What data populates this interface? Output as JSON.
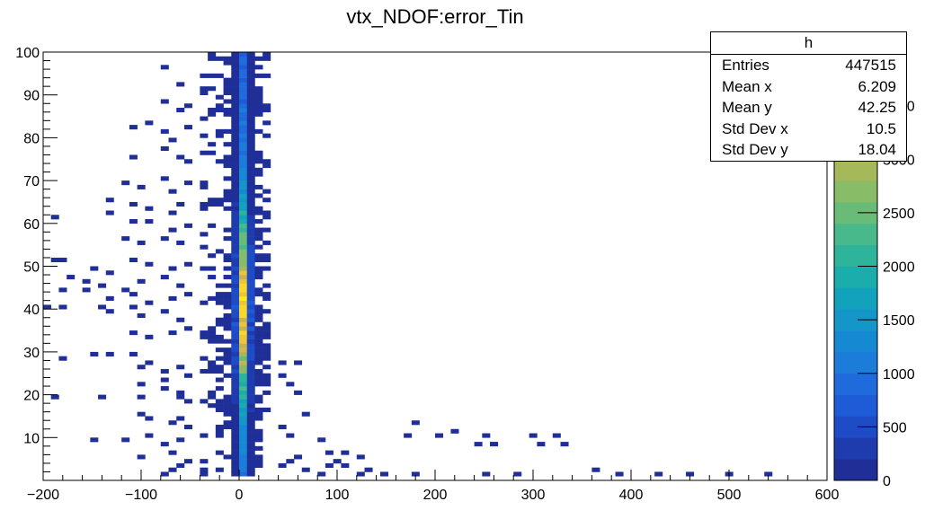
{
  "chart_data": {
    "type": "heatmap",
    "title": "vtx_NDOF:error_Tin",
    "xlabel": "",
    "ylabel": "",
    "xlim": [
      -200,
      600
    ],
    "ylim": [
      0,
      100
    ],
    "x_ticks": [
      -200,
      -100,
      0,
      100,
      200,
      300,
      400,
      500,
      600
    ],
    "y_ticks": [
      10,
      20,
      30,
      40,
      50,
      60,
      70,
      80,
      90,
      100
    ],
    "bin_width_x": 8,
    "bin_width_y": 1,
    "colorbar": {
      "ticks": [
        0,
        500,
        1000,
        1500,
        2000,
        2500,
        3000,
        3500
      ],
      "max": 4000,
      "colors": [
        "#1f2f97",
        "#1f3caf",
        "#1d4cc6",
        "#1e5bd6",
        "#1f6bdc",
        "#1b7cd9",
        "#1689d3",
        "#1596c9",
        "#13a2bb",
        "#1bacac",
        "#2db49b",
        "#48b98a",
        "#68bc77",
        "#88bc66",
        "#a6b95a",
        "#c4b552",
        "#dcb44a",
        "#eec43a",
        "#f7d82b",
        "#f9ee15"
      ]
    },
    "grid": false,
    "legend": "none",
    "stats": {
      "title": "h",
      "rows": [
        {
          "label": "Entries",
          "value": "447515"
        },
        {
          "label": "Mean x",
          "value": "6.209"
        },
        {
          "label": "Mean y",
          "value": "42.25"
        },
        {
          "label": "Std Dev x",
          "value": "10.5"
        },
        {
          "label": "Std Dev y",
          "value": "18.04"
        }
      ]
    },
    "core_column_x": 3,
    "peak_y": 40,
    "peak_counts": 4000,
    "main_cluster": {
      "x_range": [
        -40,
        30
      ],
      "y_range": [
        1,
        100
      ]
    },
    "scattered_bins": [
      [
        -80,
        96
      ],
      [
        -60,
        92
      ],
      [
        -40,
        94
      ],
      [
        -30,
        94
      ],
      [
        -10,
        93
      ],
      [
        -80,
        88
      ],
      [
        -60,
        86
      ],
      [
        -50,
        87
      ],
      [
        -30,
        86
      ],
      [
        -20,
        87
      ],
      [
        -110,
        82
      ],
      [
        -90,
        83
      ],
      [
        -80,
        81
      ],
      [
        -70,
        79
      ],
      [
        -50,
        82
      ],
      [
        -40,
        80
      ],
      [
        -30,
        78
      ],
      [
        -20,
        80
      ],
      [
        -110,
        75
      ],
      [
        -80,
        77
      ],
      [
        -60,
        75
      ],
      [
        -50,
        74
      ],
      [
        -30,
        76
      ],
      [
        -20,
        74
      ],
      [
        -120,
        69
      ],
      [
        -100,
        68
      ],
      [
        -80,
        70
      ],
      [
        -70,
        67
      ],
      [
        -50,
        69
      ],
      [
        -40,
        68
      ],
      [
        -130,
        65
      ],
      [
        -110,
        64
      ],
      [
        -90,
        63
      ],
      [
        -70,
        62
      ],
      [
        -60,
        64
      ],
      [
        -40,
        63
      ],
      [
        -130,
        62
      ],
      [
        -110,
        60
      ],
      [
        -90,
        60
      ],
      [
        -70,
        58
      ],
      [
        -50,
        59
      ],
      [
        -40,
        57
      ],
      [
        -190,
        61
      ],
      [
        -120,
        56
      ],
      [
        -100,
        55
      ],
      [
        -80,
        56
      ],
      [
        -60,
        55
      ],
      [
        -40,
        54
      ],
      [
        -190,
        51
      ],
      [
        -180,
        51
      ],
      [
        -150,
        49
      ],
      [
        -130,
        48
      ],
      [
        -110,
        51
      ],
      [
        -90,
        50
      ],
      [
        -70,
        49
      ],
      [
        -50,
        50
      ],
      [
        -170,
        47
      ],
      [
        -160,
        46
      ],
      [
        -140,
        45
      ],
      [
        -120,
        44
      ],
      [
        -100,
        46
      ],
      [
        -80,
        47
      ],
      [
        -60,
        45
      ],
      [
        -180,
        44
      ],
      [
        -160,
        44
      ],
      [
        -130,
        42
      ],
      [
        -110,
        43
      ],
      [
        -90,
        41
      ],
      [
        -70,
        42
      ],
      [
        -50,
        43
      ],
      [
        -200,
        40
      ],
      [
        -180,
        40
      ],
      [
        -140,
        40
      ],
      [
        -130,
        39
      ],
      [
        -110,
        40
      ],
      [
        -100,
        38
      ],
      [
        -80,
        39
      ],
      [
        -60,
        37
      ],
      [
        -110,
        34
      ],
      [
        -90,
        33
      ],
      [
        -70,
        34
      ],
      [
        -50,
        35
      ],
      [
        -180,
        28
      ],
      [
        -150,
        29
      ],
      [
        -130,
        29
      ],
      [
        -110,
        29
      ],
      [
        -100,
        26
      ],
      [
        -90,
        27
      ],
      [
        -80,
        25
      ],
      [
        -60,
        26
      ],
      [
        -50,
        24
      ],
      [
        -100,
        22
      ],
      [
        -80,
        23
      ],
      [
        -60,
        20
      ],
      [
        -100,
        19
      ],
      [
        -80,
        21
      ],
      [
        -60,
        19
      ],
      [
        -50,
        18
      ],
      [
        -190,
        19
      ],
      [
        -140,
        19
      ],
      [
        -100,
        15
      ],
      [
        -90,
        14
      ],
      [
        -70,
        13
      ],
      [
        -60,
        14
      ],
      [
        -50,
        12
      ],
      [
        -150,
        9
      ],
      [
        -120,
        9
      ],
      [
        -90,
        10
      ],
      [
        -80,
        8
      ],
      [
        -60,
        9
      ],
      [
        -100,
        5
      ],
      [
        -70,
        6
      ],
      [
        -60,
        3
      ],
      [
        -50,
        4
      ],
      [
        -80,
        1
      ],
      [
        -70,
        2
      ],
      [
        40,
        27
      ],
      [
        40,
        24
      ],
      [
        50,
        22
      ],
      [
        60,
        20
      ],
      [
        70,
        15
      ],
      [
        40,
        12
      ],
      [
        50,
        10
      ],
      [
        80,
        9
      ],
      [
        90,
        6
      ],
      [
        100,
        4
      ],
      [
        110,
        3
      ],
      [
        120,
        1
      ],
      [
        130,
        2
      ],
      [
        40,
        3
      ],
      [
        50,
        4
      ],
      [
        70,
        2
      ],
      [
        60,
        5
      ],
      [
        80,
        1
      ],
      [
        90,
        3
      ],
      [
        110,
        6
      ],
      [
        120,
        5
      ],
      [
        60,
        27
      ],
      [
        180,
        13
      ],
      [
        170,
        10
      ],
      [
        200,
        10
      ],
      [
        220,
        11
      ],
      [
        240,
        8
      ],
      [
        250,
        10
      ],
      [
        260,
        8
      ],
      [
        300,
        10
      ],
      [
        320,
        10
      ],
      [
        310,
        8
      ],
      [
        330,
        8
      ],
      [
        150,
        1
      ],
      [
        180,
        1
      ],
      [
        250,
        1
      ],
      [
        280,
        1
      ],
      [
        360,
        2
      ],
      [
        390,
        1
      ],
      [
        430,
        1
      ],
      [
        460,
        1
      ],
      [
        500,
        1
      ],
      [
        540,
        1
      ]
    ]
  }
}
